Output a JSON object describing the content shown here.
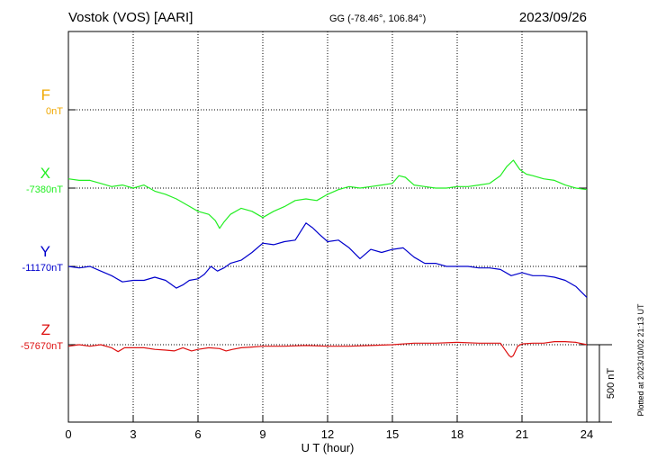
{
  "header": {
    "station": "Vostok (VOS)  [AARI]",
    "coords": "GG (-78.46°, 106.84°)",
    "date": "2023/09/26"
  },
  "footer": {
    "plotted_note": "Plotted at 2023/10/02 21:13 UT"
  },
  "colors": {
    "F": "#f0a800",
    "X": "#22ee22",
    "Y": "#0000cc",
    "Z": "#dd1111",
    "grid": "#000000"
  },
  "chart_data": {
    "type": "line",
    "xlabel": "U T (hour)",
    "xlim": [
      0,
      24
    ],
    "xticks": [
      "0",
      "3",
      "6",
      "9",
      "12",
      "15",
      "18",
      "21",
      "24"
    ],
    "scale_bar_label": "500 nT",
    "scale_bar_nT": 500,
    "units": "nT",
    "series": [
      {
        "name": "F",
        "baseline_label": "0nT",
        "baseline_nT": 0,
        "values": []
      },
      {
        "name": "X",
        "baseline_label": "-7380nT",
        "baseline_nT": -7380,
        "x": [
          0,
          0.5,
          1,
          1.5,
          2,
          2.5,
          3,
          3.5,
          4,
          4.5,
          5,
          5.5,
          6,
          6.5,
          6.8,
          7.0,
          7.2,
          7.5,
          8,
          8.5,
          9,
          9.5,
          10,
          10.5,
          11,
          11.5,
          12,
          12.5,
          13,
          13.5,
          14,
          14.5,
          15,
          15.3,
          15.6,
          16,
          16.5,
          17,
          17.5,
          18,
          18.5,
          19,
          19.5,
          20,
          20.3,
          20.6,
          20.9,
          21.2,
          21.5,
          22,
          22.5,
          23,
          23.5,
          24
        ],
        "values": [
          -7320,
          -7330,
          -7330,
          -7350,
          -7370,
          -7360,
          -7380,
          -7360,
          -7400,
          -7420,
          -7450,
          -7490,
          -7530,
          -7550,
          -7590,
          -7640,
          -7600,
          -7550,
          -7510,
          -7530,
          -7570,
          -7530,
          -7500,
          -7460,
          -7450,
          -7460,
          -7420,
          -7390,
          -7370,
          -7380,
          -7370,
          -7360,
          -7350,
          -7300,
          -7310,
          -7360,
          -7370,
          -7380,
          -7380,
          -7370,
          -7370,
          -7360,
          -7350,
          -7300,
          -7240,
          -7200,
          -7260,
          -7290,
          -7300,
          -7320,
          -7330,
          -7360,
          -7380,
          -7390
        ]
      },
      {
        "name": "Y",
        "baseline_label": "-11170nT",
        "baseline_nT": -11170,
        "x": [
          0,
          0.5,
          1,
          1.5,
          2,
          2.5,
          3,
          3.5,
          4,
          4.5,
          5,
          5.3,
          5.6,
          6,
          6.3,
          6.6,
          6.9,
          7.2,
          7.5,
          8,
          8.5,
          9,
          9.5,
          10,
          10.5,
          11,
          11.3,
          11.6,
          12,
          12.5,
          13,
          13.5,
          14,
          14.5,
          15,
          15.5,
          16,
          16.5,
          17,
          17.5,
          18,
          18.5,
          19,
          19.5,
          20,
          20.5,
          21,
          21.5,
          22,
          22.5,
          23,
          23.5,
          24
        ],
        "values": [
          -11170,
          -11180,
          -11170,
          -11200,
          -11230,
          -11270,
          -11260,
          -11260,
          -11240,
          -11260,
          -11310,
          -11290,
          -11260,
          -11250,
          -11220,
          -11170,
          -11200,
          -11180,
          -11150,
          -11130,
          -11080,
          -11020,
          -11030,
          -11010,
          -11000,
          -10890,
          -10920,
          -10960,
          -11010,
          -11000,
          -11050,
          -11120,
          -11060,
          -11080,
          -11060,
          -11050,
          -11110,
          -11150,
          -11150,
          -11170,
          -11170,
          -11170,
          -11180,
          -11180,
          -11190,
          -11230,
          -11210,
          -11230,
          -11230,
          -11240,
          -11260,
          -11300,
          -11370
        ]
      },
      {
        "name": "Z",
        "baseline_label": "-57670nT",
        "baseline_nT": -57670,
        "x": [
          0,
          0.5,
          1,
          1.5,
          2,
          2.3,
          2.6,
          3,
          3.5,
          4,
          4.5,
          4.9,
          5.3,
          5.7,
          6,
          6.5,
          7,
          7.3,
          7.6,
          8,
          8.5,
          9,
          10,
          11,
          12,
          13,
          14,
          15,
          16,
          17,
          18,
          19,
          20,
          20.2,
          20.4,
          20.5,
          20.6,
          20.8,
          21,
          21.5,
          22,
          22.5,
          23,
          23.5,
          24
        ],
        "values": [
          -57680,
          -57670,
          -57680,
          -57670,
          -57690,
          -57715,
          -57690,
          -57690,
          -57690,
          -57700,
          -57705,
          -57710,
          -57690,
          -57710,
          -57700,
          -57690,
          -57695,
          -57710,
          -57700,
          -57690,
          -57685,
          -57680,
          -57680,
          -57675,
          -57680,
          -57680,
          -57675,
          -57670,
          -57660,
          -57660,
          -57655,
          -57660,
          -57660,
          -57700,
          -57740,
          -57750,
          -57740,
          -57680,
          -57665,
          -57660,
          -57660,
          -57650,
          -57650,
          -57655,
          -57670
        ]
      }
    ]
  }
}
